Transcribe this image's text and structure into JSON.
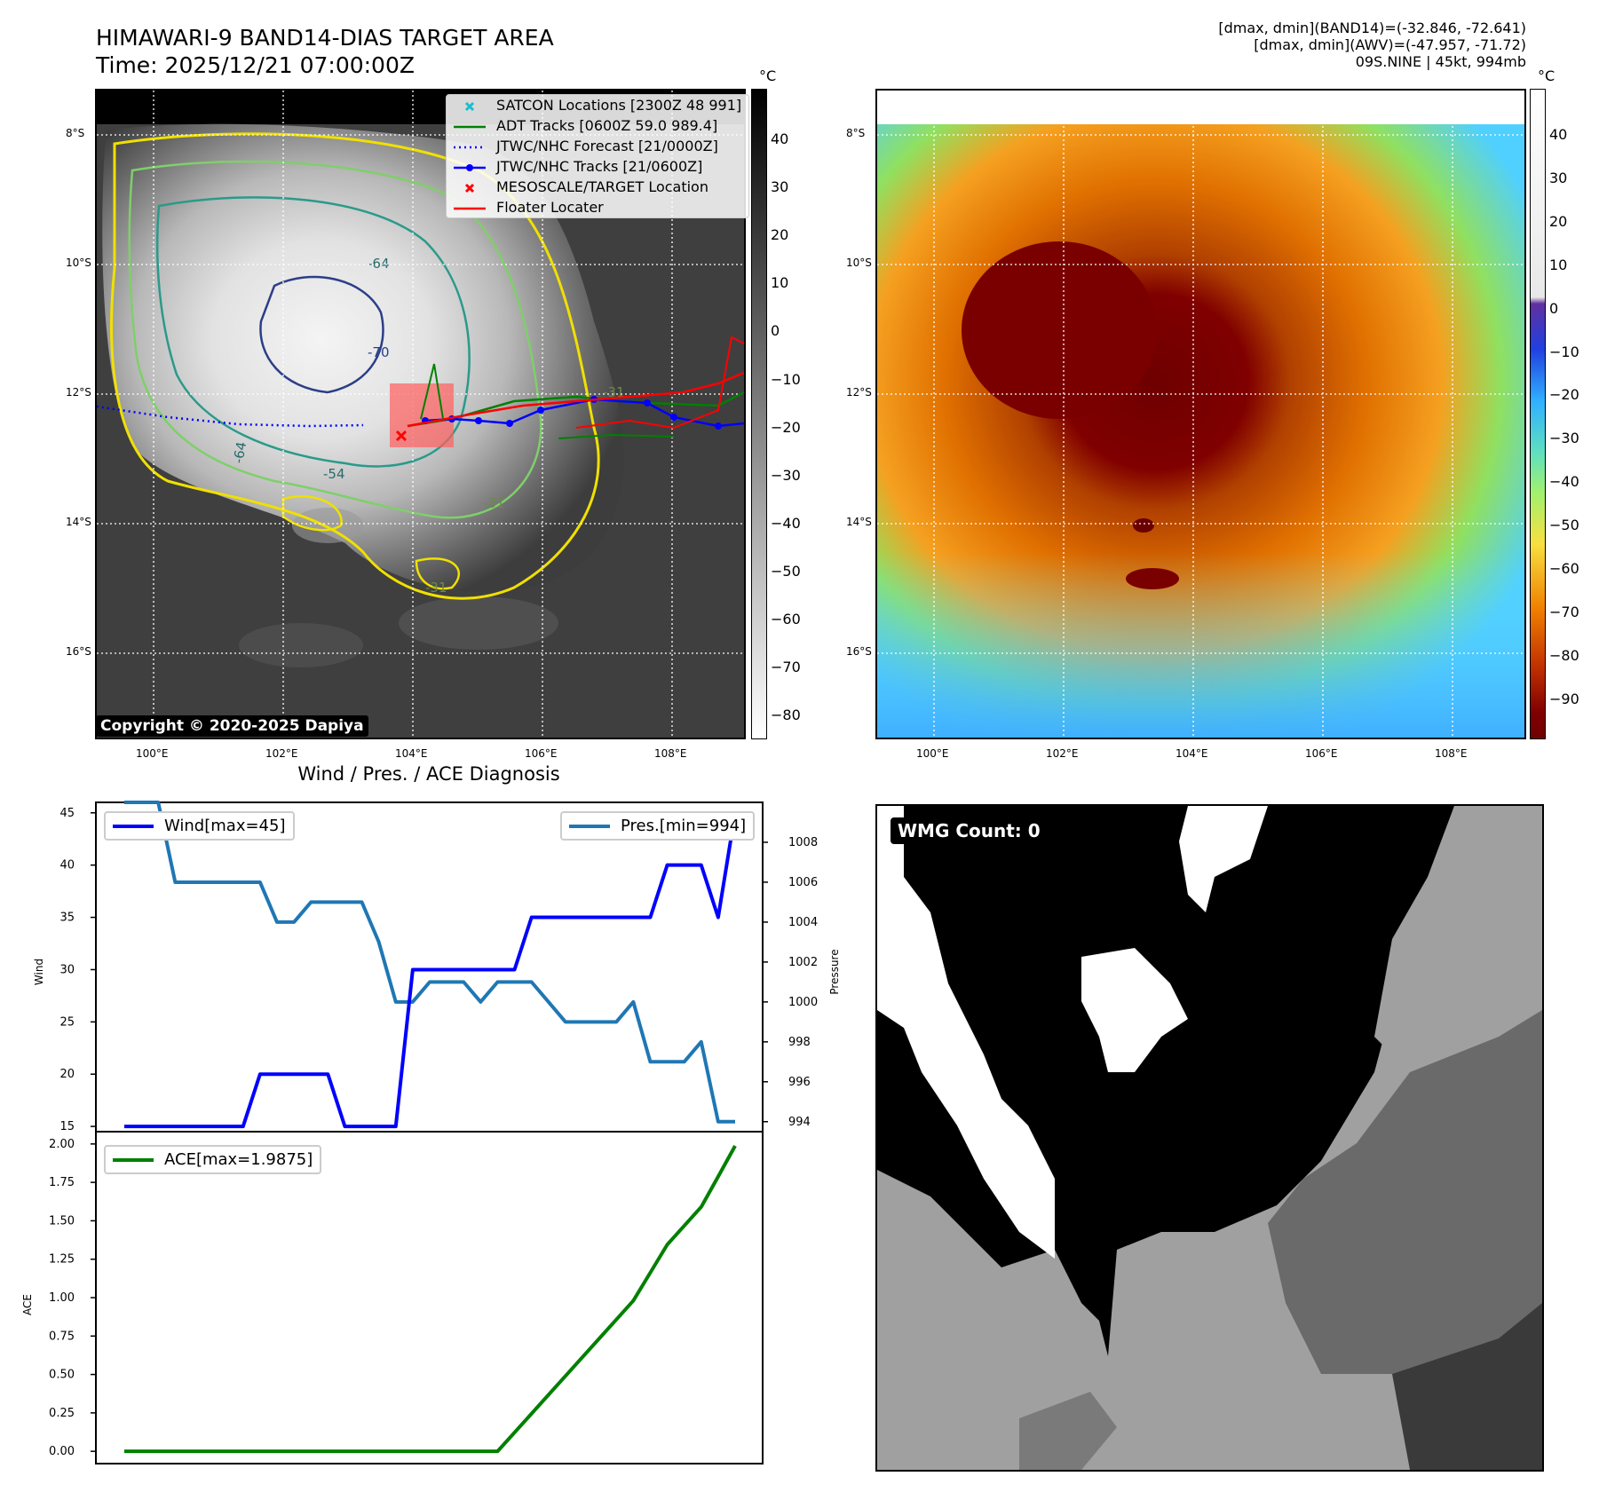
{
  "header": {
    "title_line1": "HIMAWARI-9 BAND14-DIAS TARGET AREA",
    "title_line2": "Time: 2025/12/21 07:00:00Z",
    "info_line1": "[dmax, dmin](BAND14)=(-32.846, -72.641)",
    "info_line2": "[dmax, dmin](AWV)=(-47.957, -71.72)",
    "info_line3": "09S.NINE | 45kt, 994mb"
  },
  "map_axes": {
    "lat_labels": [
      "8°S",
      "10°S",
      "12°S",
      "14°S",
      "16°S"
    ],
    "lon_labels": [
      "100°E",
      "102°E",
      "104°E",
      "106°E",
      "108°E"
    ]
  },
  "ir_panel": {
    "legend": [
      {
        "label": "SATCON Locations [2300Z 48 991]",
        "color": "#17becf",
        "marker": "x"
      },
      {
        "label": "ADT Tracks [0600Z 59.0 989.4]",
        "color": "#008000",
        "marker": "line"
      },
      {
        "label": "JTWC/NHC Forecast [21/0000Z]",
        "color": "#0000ff",
        "marker": "dotted"
      },
      {
        "label": "JTWC/NHC Tracks [21/0600Z]",
        "color": "#0000ff",
        "marker": "line-dot"
      },
      {
        "label": "MESOSCALE/TARGET Location",
        "color": "#ff0000",
        "marker": "x"
      },
      {
        "label": "Floater Locater",
        "color": "#ff0000",
        "marker": "line"
      }
    ],
    "contour_labels": [
      "-64",
      "-54",
      "-31",
      "-31",
      "-31",
      "-64",
      "-70"
    ],
    "copyright": "Copyright © 2020-2025 Dapiya",
    "colorbar": {
      "unit": "°C",
      "ticks": [
        "40",
        "30",
        "20",
        "10",
        "0",
        "−10",
        "−20",
        "−30",
        "−40",
        "−50",
        "−60",
        "−70",
        "−80"
      ]
    }
  },
  "awv_panel": {
    "colorbar": {
      "unit": "°C",
      "ticks": [
        "40",
        "30",
        "20",
        "10",
        "0",
        "−10",
        "−20",
        "−30",
        "−40",
        "−50",
        "−60",
        "−70",
        "−80",
        "−90"
      ]
    }
  },
  "wmg_panel": {
    "label": "WMG Count: 0"
  },
  "diagnosis": {
    "title": "Wind / Pres. / ACE Diagnosis",
    "wind_ylabel": "Wind",
    "pres_ylabel": "Pressure",
    "ace_ylabel": "ACE",
    "wind_legend": "Wind[max=45]",
    "pres_legend": "Pres.[min=994]",
    "ace_legend": "ACE[max=1.9875]"
  },
  "chart_data": [
    {
      "type": "line",
      "title": "Wind / Pres. / ACE Diagnosis",
      "ylabel": "Wind",
      "ylabel_right": "Pressure",
      "x": [
        0,
        1,
        2,
        3,
        4,
        5,
        6,
        7,
        8,
        9,
        10,
        11,
        12,
        13,
        14,
        15,
        16,
        17,
        18,
        19,
        20,
        21,
        22,
        23,
        24,
        25,
        26,
        27,
        28,
        29,
        30,
        31,
        32,
        33,
        34,
        35,
        36
      ],
      "ylim": [
        14.5,
        46
      ],
      "ylim_right": [
        993.5,
        1010
      ],
      "yticks": [
        15,
        20,
        25,
        30,
        35,
        40,
        45
      ],
      "yticks_right": [
        994,
        996,
        998,
        1000,
        1002,
        1004,
        1006,
        1008
      ],
      "series": [
        {
          "name": "Wind[max=45]",
          "color": "#0000ff",
          "axis": "left",
          "values": [
            15,
            15,
            15,
            15,
            15,
            15,
            15,
            15,
            20,
            20,
            20,
            20,
            20,
            15,
            15,
            15,
            15,
            30,
            30,
            30,
            30,
            30,
            30,
            30,
            35,
            35,
            35,
            35,
            35,
            35,
            35,
            35,
            40,
            40,
            40,
            35,
            45
          ]
        },
        {
          "name": "Pres.[min=994]",
          "color": "#1f77b4",
          "axis": "right",
          "values": [
            1010,
            1010,
            1010,
            1006,
            1006,
            1006,
            1006,
            1006,
            1006,
            1004,
            1004,
            1005,
            1005,
            1005,
            1005,
            1003,
            1000,
            1000,
            1001,
            1001,
            1001,
            1000,
            1001,
            1001,
            1001,
            1000,
            999,
            999,
            999,
            999,
            1000,
            997,
            997,
            997,
            998,
            994,
            994
          ]
        }
      ]
    },
    {
      "type": "line",
      "ylabel": "ACE",
      "x": [
        0,
        1,
        2,
        3,
        4,
        5,
        6,
        7,
        8,
        9,
        10,
        11,
        12,
        13,
        14,
        15,
        16,
        17,
        18,
        19,
        20,
        21,
        22,
        23,
        24,
        25,
        26,
        27,
        28,
        29,
        30,
        31,
        32,
        33,
        34,
        35,
        36
      ],
      "ylim": [
        -0.08,
        2.08
      ],
      "yticks": [
        "0.00",
        "0.25",
        "0.50",
        "0.75",
        "1.00",
        "1.25",
        "1.50",
        "1.75",
        "2.00"
      ],
      "series": [
        {
          "name": "ACE[max=1.9875]",
          "color": "#008000",
          "values": [
            0,
            0,
            0,
            0,
            0,
            0,
            0,
            0,
            0,
            0,
            0,
            0,
            0,
            0,
            0,
            0,
            0,
            0,
            0,
            0,
            0,
            0,
            0,
            0.1225,
            0.245,
            0.3675,
            0.49,
            0.6125,
            0.735,
            0.8575,
            0.98,
            1.1625,
            1.345,
            1.4675,
            1.59,
            1.7875,
            1.9875
          ]
        }
      ]
    }
  ]
}
